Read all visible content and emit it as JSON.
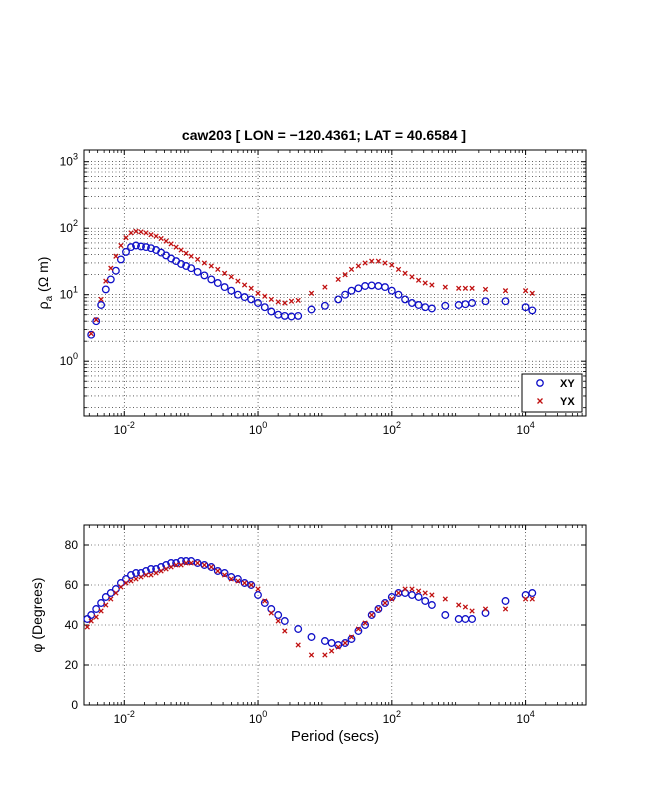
{
  "figure": {
    "title": "caw203 [ LON = −120.4361; LAT = 40.6584 ]"
  },
  "colors": {
    "xy": "#1010c8",
    "yx": "#c01010",
    "axis": "#000000",
    "grid": "#000000"
  },
  "chart_data": [
    {
      "type": "scatter",
      "name": "apparent-resistivity",
      "x_scale": "log",
      "y_scale": "log",
      "xlim": [
        0.0025,
        80000
      ],
      "ylim": [
        0.15,
        1500
      ],
      "grid": true,
      "legend": "bottom-right",
      "ylabel": {
        "main": "ρ",
        "sub": "a",
        "unit": " (Ω m)"
      },
      "x_ticks": [
        {
          "v": 0.01,
          "base": "10",
          "exp": "-2"
        },
        {
          "v": 1,
          "base": "10",
          "exp": "0"
        },
        {
          "v": 100,
          "base": "10",
          "exp": "2"
        },
        {
          "v": 10000,
          "base": "10",
          "exp": "4"
        }
      ],
      "y_ticks": [
        {
          "v": 1,
          "base": "10",
          "exp": "0"
        },
        {
          "v": 10,
          "base": "10",
          "exp": "1"
        },
        {
          "v": 100,
          "base": "10",
          "exp": "2"
        },
        {
          "v": 1000,
          "base": "10",
          "exp": "3"
        }
      ],
      "series": [
        {
          "name": "XY",
          "marker": "circle",
          "x": [
            0.0032,
            0.0038,
            0.0045,
            0.0053,
            0.0063,
            0.0075,
            0.0089,
            0.0106,
            0.0126,
            0.015,
            0.0178,
            0.0211,
            0.0251,
            0.0299,
            0.0355,
            0.0422,
            0.0501,
            0.0596,
            0.0708,
            0.0841,
            0.1,
            0.125,
            0.158,
            0.2,
            0.25,
            0.316,
            0.398,
            0.5,
            0.63,
            0.79,
            1.0,
            1.26,
            1.58,
            2.0,
            2.51,
            3.16,
            3.98,
            6.3,
            10,
            15.8,
            20,
            25,
            31.6,
            39.8,
            50,
            63,
            79,
            100,
            126,
            158,
            200,
            251,
            316,
            398,
            631,
            1000,
            1259,
            1585,
            2512,
            5012,
            10000,
            12589
          ],
          "y": [
            2.5,
            4.0,
            7.0,
            12,
            17,
            23,
            34,
            44,
            52,
            55,
            53,
            52,
            50,
            47,
            43,
            39,
            35,
            32,
            29,
            27,
            25,
            22,
            19.5,
            17,
            15,
            13,
            11.5,
            10,
            9.2,
            8.5,
            7.5,
            6.5,
            5.6,
            5.0,
            4.8,
            4.7,
            4.8,
            6.0,
            6.8,
            8.5,
            10.0,
            11.5,
            12.5,
            13.5,
            13.8,
            13.5,
            13.0,
            11.5,
            10.0,
            8.5,
            7.5,
            7.0,
            6.5,
            6.2,
            6.8,
            7.0,
            7.2,
            7.5,
            8.0,
            8.0,
            6.5,
            5.8
          ]
        },
        {
          "name": "YX",
          "marker": "x",
          "x": [
            0.0032,
            0.0038,
            0.0045,
            0.0053,
            0.0063,
            0.0075,
            0.0089,
            0.0106,
            0.0126,
            0.015,
            0.0178,
            0.0211,
            0.0251,
            0.0299,
            0.0355,
            0.0422,
            0.0501,
            0.0596,
            0.0708,
            0.0841,
            0.1,
            0.125,
            0.158,
            0.2,
            0.25,
            0.316,
            0.398,
            0.5,
            0.63,
            0.79,
            1.0,
            1.26,
            1.58,
            2.0,
            2.51,
            3.16,
            3.98,
            6.3,
            10,
            15.8,
            20,
            25,
            31.6,
            39.8,
            50,
            63,
            79,
            100,
            126,
            158,
            200,
            251,
            316,
            398,
            631,
            1000,
            1259,
            1585,
            2512,
            5012,
            10000,
            12589
          ],
          "y": [
            2.6,
            4.2,
            8.5,
            16,
            25,
            38,
            55,
            72,
            85,
            90,
            88,
            85,
            80,
            76,
            70,
            64,
            58,
            52,
            47,
            42,
            38,
            34,
            30,
            27,
            24,
            21,
            18.5,
            16,
            14,
            12.5,
            10.5,
            9.5,
            8.5,
            7.8,
            7.5,
            8.0,
            8.2,
            10.5,
            13,
            17,
            20,
            24,
            27,
            30,
            32,
            32,
            30,
            28,
            24,
            21,
            18.5,
            16.5,
            15,
            14,
            13,
            12.5,
            12.5,
            12.5,
            12,
            11.5,
            11.5,
            10.5
          ]
        }
      ]
    },
    {
      "type": "scatter",
      "name": "phase",
      "x_scale": "log",
      "xlim": [
        0.0025,
        80000
      ],
      "ylim": [
        0,
        90
      ],
      "grid": true,
      "xlabel": "Period (secs)",
      "ylabel": {
        "main": "φ (Degrees)"
      },
      "x_ticks": [
        {
          "v": 0.01,
          "base": "10",
          "exp": "-2"
        },
        {
          "v": 1,
          "base": "10",
          "exp": "0"
        },
        {
          "v": 100,
          "base": "10",
          "exp": "2"
        },
        {
          "v": 10000,
          "base": "10",
          "exp": "4"
        }
      ],
      "y_ticks": [
        {
          "v": 0,
          "label": "0"
        },
        {
          "v": 20,
          "label": "20"
        },
        {
          "v": 40,
          "label": "40"
        },
        {
          "v": 60,
          "label": "60"
        },
        {
          "v": 80,
          "label": "80"
        }
      ],
      "series": [
        {
          "name": "XY",
          "marker": "circle",
          "x": [
            0.0028,
            0.0032,
            0.0038,
            0.0045,
            0.0053,
            0.0063,
            0.0075,
            0.0089,
            0.0106,
            0.0126,
            0.015,
            0.0178,
            0.0211,
            0.0251,
            0.0299,
            0.0355,
            0.0422,
            0.0501,
            0.0596,
            0.0708,
            0.0841,
            0.1,
            0.125,
            0.158,
            0.2,
            0.25,
            0.316,
            0.398,
            0.5,
            0.63,
            0.79,
            1.0,
            1.26,
            1.58,
            2.0,
            2.51,
            3.98,
            6.3,
            10,
            12.6,
            15.8,
            20,
            25,
            31.6,
            39.8,
            50,
            63,
            79,
            100,
            126,
            158,
            200,
            251,
            316,
            398,
            631,
            1000,
            1259,
            1585,
            2512,
            5012,
            10000,
            12589
          ],
          "y": [
            43,
            45,
            48,
            51,
            54,
            56,
            58,
            61,
            63,
            65,
            66,
            66,
            67,
            68,
            68,
            69,
            70,
            71,
            71,
            72,
            72,
            72,
            71,
            70,
            69,
            67,
            66,
            64,
            63,
            61,
            60,
            55,
            51,
            48,
            45,
            42,
            38,
            34,
            32,
            31,
            30,
            31,
            33,
            37,
            40,
            45,
            48,
            51,
            54,
            56,
            56,
            55,
            54,
            52,
            50,
            45,
            43,
            43,
            43,
            46,
            52,
            55,
            56
          ]
        },
        {
          "name": "YX",
          "marker": "x",
          "x": [
            0.0028,
            0.0032,
            0.0038,
            0.0045,
            0.0053,
            0.0063,
            0.0075,
            0.0089,
            0.0106,
            0.0126,
            0.015,
            0.0178,
            0.0211,
            0.0251,
            0.0299,
            0.0355,
            0.0422,
            0.0501,
            0.0596,
            0.0708,
            0.0841,
            0.1,
            0.125,
            0.158,
            0.2,
            0.25,
            0.316,
            0.398,
            0.5,
            0.63,
            0.79,
            1.0,
            1.26,
            1.58,
            2.0,
            2.51,
            3.98,
            6.3,
            10,
            12.6,
            15.8,
            20,
            25,
            31.6,
            39.8,
            50,
            63,
            79,
            100,
            126,
            158,
            200,
            251,
            316,
            398,
            631,
            1000,
            1259,
            1585,
            2512,
            5012,
            10000,
            12589
          ],
          "y": [
            39,
            42,
            44,
            47,
            50,
            53,
            56,
            59,
            61,
            62,
            63,
            64,
            65,
            65,
            66,
            67,
            68,
            69,
            70,
            70,
            71,
            71,
            71,
            70,
            69,
            67,
            65,
            63,
            62,
            61,
            60,
            58,
            52,
            46,
            42,
            37,
            30,
            25,
            25,
            27,
            29,
            31,
            34,
            38,
            41,
            45,
            48,
            51,
            53,
            56,
            58,
            58,
            57,
            56,
            55,
            53,
            50,
            49,
            47,
            48,
            48,
            53,
            53
          ]
        }
      ]
    }
  ]
}
